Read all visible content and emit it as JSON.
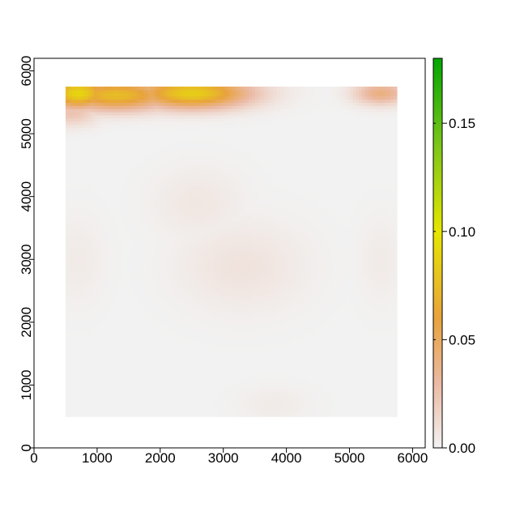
{
  "chart_data": {
    "type": "heatmap",
    "title": "",
    "xlabel": "",
    "ylabel": "",
    "xlim": [
      0,
      6200
    ],
    "ylim": [
      0,
      6200
    ],
    "xticks": [
      0,
      1000,
      2000,
      3000,
      4000,
      5000,
      6000
    ],
    "yticks": [
      0,
      1000,
      2000,
      3000,
      4000,
      5000,
      6000
    ],
    "raster_extent": {
      "x": [
        500,
        5750
      ],
      "y": [
        500,
        5750
      ]
    },
    "colorbar": {
      "range": [
        0.0,
        0.18
      ],
      "ticks": [
        0.0,
        0.05,
        0.1,
        0.15
      ],
      "tick_labels": [
        "0.00",
        "0.05",
        "0.10",
        "0.15"
      ],
      "stops": [
        {
          "value": 0.0,
          "color": "#f2f2f2"
        },
        {
          "value": 0.03,
          "color": "#ebb9a3"
        },
        {
          "value": 0.06,
          "color": "#e8a33c"
        },
        {
          "value": 0.1,
          "color": "#e6e600"
        },
        {
          "value": 0.14,
          "color": "#7cc51a"
        },
        {
          "value": 0.18,
          "color": "#00a600"
        }
      ]
    },
    "background_value": 0.0,
    "hotspots": [
      {
        "x": 700,
        "y": 5650,
        "sx": 350,
        "sy": 170,
        "value": 0.09
      },
      {
        "x": 1300,
        "y": 5620,
        "sx": 650,
        "sy": 170,
        "value": 0.075
      },
      {
        "x": 2500,
        "y": 5650,
        "sx": 650,
        "sy": 170,
        "value": 0.085
      },
      {
        "x": 2700,
        "y": 5500,
        "sx": 400,
        "sy": 120,
        "value": 0.03
      },
      {
        "x": 600,
        "y": 5350,
        "sx": 300,
        "sy": 150,
        "value": 0.025
      },
      {
        "x": 5500,
        "y": 5650,
        "sx": 300,
        "sy": 130,
        "value": 0.04
      },
      {
        "x": 2600,
        "y": 3900,
        "sx": 500,
        "sy": 400,
        "value": 0.006
      },
      {
        "x": 3300,
        "y": 2900,
        "sx": 700,
        "sy": 500,
        "value": 0.008
      },
      {
        "x": 700,
        "y": 3000,
        "sx": 300,
        "sy": 500,
        "value": 0.004
      },
      {
        "x": 5500,
        "y": 3000,
        "sx": 250,
        "sy": 500,
        "value": 0.004
      },
      {
        "x": 3800,
        "y": 700,
        "sx": 400,
        "sy": 200,
        "value": 0.004
      }
    ]
  }
}
